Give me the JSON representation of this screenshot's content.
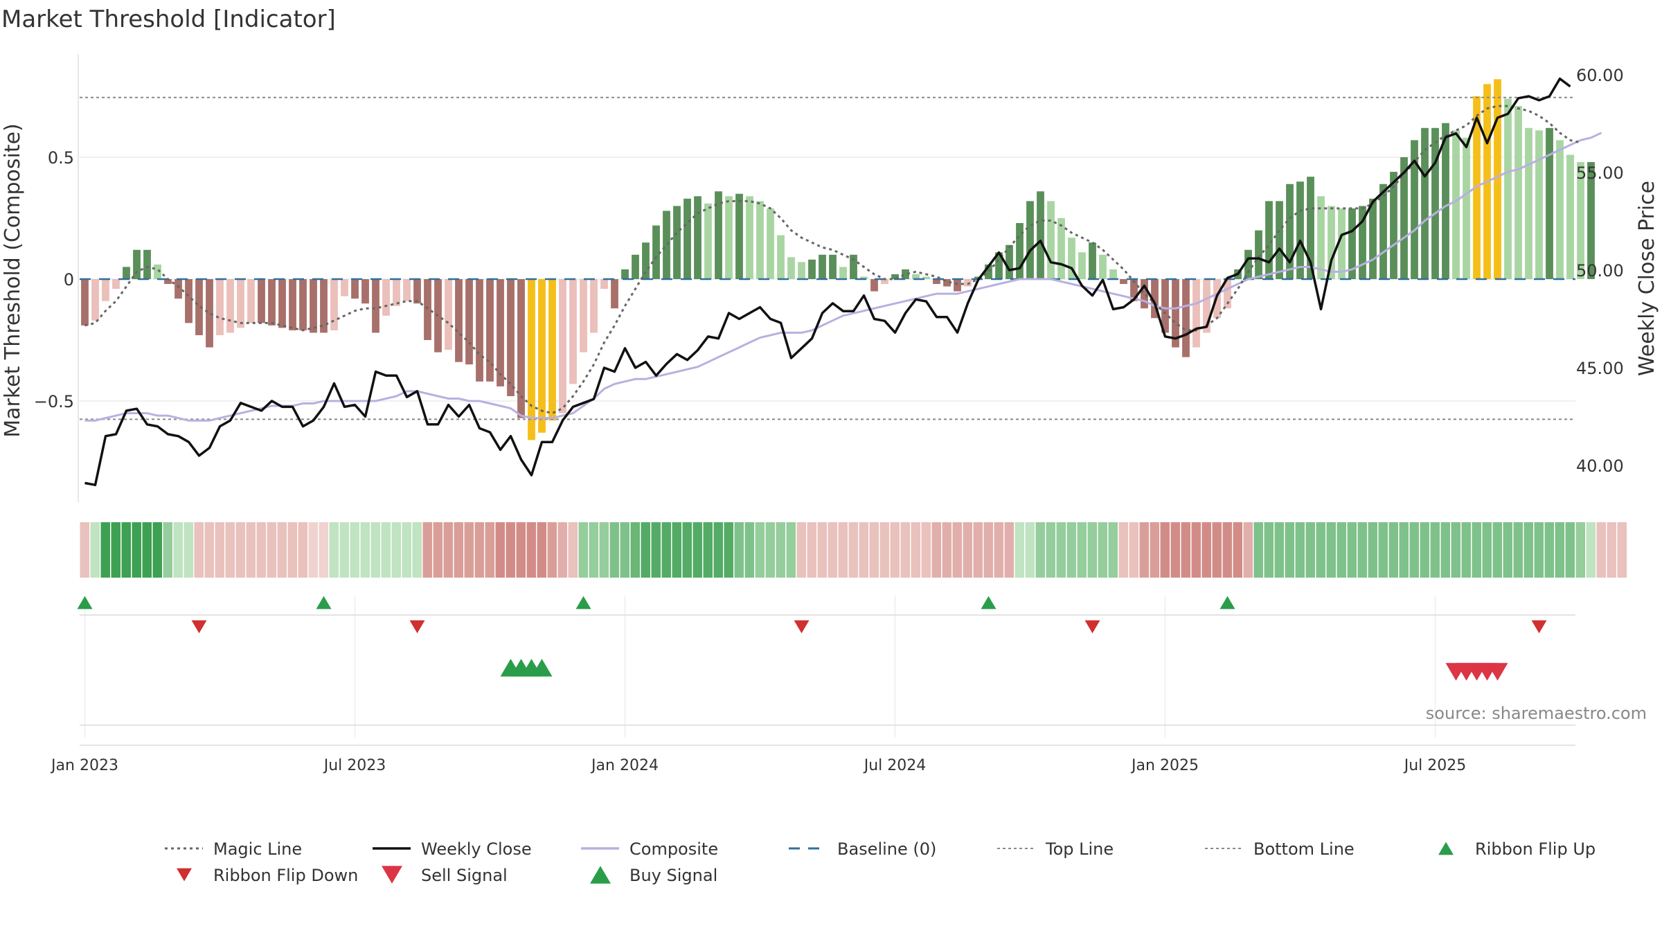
{
  "chart_data": {
    "type": "bar",
    "title": "Market Threshold [Indicator]",
    "y_left_label": "Market Threshold (Composite)",
    "y_right_label": "Weekly Close Price",
    "y_left_ticks": [
      0.5,
      0,
      -0.5
    ],
    "y_left_tick_labels": [
      "0.5",
      "0",
      "−0.5"
    ],
    "y_left_range": [
      -0.92,
      0.92
    ],
    "y_right_ticks": [
      60,
      55,
      50,
      45,
      40
    ],
    "y_right_tick_labels": [
      "60.00",
      "55.00",
      "50.00",
      "45.00",
      "40.00"
    ],
    "y_right_range": [
      37.5,
      61.5
    ],
    "x_tick_labels": [
      "Jan 2023",
      "Jul 2023",
      "Jan 2024",
      "Jul 2024",
      "Jan 2025",
      "Jul 2025"
    ],
    "x_tick_weeks": [
      0,
      26,
      52,
      78,
      104,
      130
    ],
    "week_start": "2023-01-02",
    "num_weeks": 144,
    "top_line": 0.745,
    "bottom_line": -0.575,
    "composite_bars": [
      -0.19,
      -0.17,
      -0.09,
      -0.04,
      0.05,
      0.12,
      0.12,
      0.06,
      -0.02,
      -0.08,
      -0.18,
      -0.23,
      -0.28,
      -0.23,
      -0.22,
      -0.2,
      -0.18,
      -0.18,
      -0.19,
      -0.2,
      -0.21,
      -0.21,
      -0.22,
      -0.22,
      -0.21,
      -0.07,
      -0.08,
      -0.1,
      -0.22,
      -0.15,
      -0.11,
      -0.09,
      -0.1,
      -0.25,
      -0.3,
      -0.29,
      -0.34,
      -0.35,
      -0.42,
      -0.42,
      -0.44,
      -0.48,
      -0.57,
      -0.66,
      -0.63,
      -0.58,
      -0.55,
      -0.43,
      -0.3,
      -0.22,
      -0.04,
      -0.12,
      0.04,
      0.1,
      0.15,
      0.22,
      0.28,
      0.3,
      0.33,
      0.34,
      0.31,
      0.36,
      0.34,
      0.35,
      0.34,
      0.32,
      0.29,
      0.18,
      0.09,
      0.07,
      0.08,
      0.1,
      0.1,
      0.05,
      0.1,
      0.01,
      -0.05,
      -0.02,
      0.02,
      0.04,
      0.02,
      0.01,
      -0.02,
      -0.03,
      -0.05,
      -0.03,
      0.01,
      0.06,
      0.11,
      0.14,
      0.23,
      0.32,
      0.36,
      0.32,
      0.25,
      0.17,
      0.11,
      0.15,
      0.1,
      0.04,
      -0.02,
      -0.09,
      -0.12,
      -0.16,
      -0.22,
      -0.28,
      -0.32,
      -0.28,
      -0.22,
      -0.16,
      -0.12,
      0.04,
      0.12,
      0.2,
      0.32,
      0.32,
      0.39,
      0.4,
      0.42,
      0.34,
      0.3,
      0.29,
      0.29,
      0.3,
      0.33,
      0.39,
      0.44,
      0.5,
      0.57,
      0.62,
      0.62,
      0.64,
      0.61,
      0.58,
      0.75,
      0.8,
      0.82,
      0.74,
      0.71,
      0.62,
      0.61,
      0.62,
      0.57,
      0.51,
      0.48,
      0.48
    ],
    "magic_line": [
      -0.19,
      -0.18,
      -0.13,
      -0.09,
      -0.03,
      0.03,
      0.05,
      0.04,
      0.0,
      -0.03,
      -0.07,
      -0.11,
      -0.14,
      -0.16,
      -0.17,
      -0.18,
      -0.18,
      -0.18,
      -0.18,
      -0.19,
      -0.2,
      -0.21,
      -0.2,
      -0.19,
      -0.17,
      -0.15,
      -0.13,
      -0.12,
      -0.12,
      -0.11,
      -0.1,
      -0.09,
      -0.09,
      -0.12,
      -0.15,
      -0.18,
      -0.22,
      -0.26,
      -0.31,
      -0.34,
      -0.39,
      -0.43,
      -0.48,
      -0.52,
      -0.54,
      -0.55,
      -0.53,
      -0.48,
      -0.42,
      -0.35,
      -0.26,
      -0.19,
      -0.11,
      -0.04,
      0.03,
      0.09,
      0.14,
      0.19,
      0.23,
      0.27,
      0.29,
      0.31,
      0.32,
      0.32,
      0.32,
      0.31,
      0.29,
      0.25,
      0.2,
      0.17,
      0.15,
      0.13,
      0.12,
      0.1,
      0.08,
      0.05,
      0.02,
      0.0,
      0.0,
      0.02,
      0.03,
      0.02,
      0.01,
      -0.01,
      -0.02,
      -0.02,
      0.0,
      0.03,
      0.08,
      0.13,
      0.18,
      0.22,
      0.24,
      0.24,
      0.22,
      0.19,
      0.17,
      0.15,
      0.12,
      0.08,
      0.04,
      -0.01,
      -0.06,
      -0.1,
      -0.14,
      -0.18,
      -0.21,
      -0.21,
      -0.19,
      -0.16,
      -0.1,
      -0.04,
      0.03,
      0.09,
      0.14,
      0.2,
      0.25,
      0.28,
      0.29,
      0.29,
      0.29,
      0.29,
      0.29,
      0.29,
      0.31,
      0.34,
      0.38,
      0.43,
      0.48,
      0.53,
      0.56,
      0.59,
      0.61,
      0.63,
      0.67,
      0.7,
      0.71,
      0.71,
      0.7,
      0.69,
      0.67,
      0.64,
      0.6,
      0.57,
      0.56
    ],
    "composite_line": [
      -0.58,
      -0.58,
      -0.57,
      -0.56,
      -0.55,
      -0.55,
      -0.55,
      -0.56,
      -0.56,
      -0.57,
      -0.58,
      -0.58,
      -0.58,
      -0.57,
      -0.56,
      -0.55,
      -0.54,
      -0.53,
      -0.52,
      -0.52,
      -0.52,
      -0.51,
      -0.51,
      -0.5,
      -0.5,
      -0.5,
      -0.5,
      -0.5,
      -0.5,
      -0.49,
      -0.48,
      -0.46,
      -0.46,
      -0.47,
      -0.48,
      -0.49,
      -0.49,
      -0.5,
      -0.5,
      -0.51,
      -0.52,
      -0.53,
      -0.56,
      -0.57,
      -0.57,
      -0.57,
      -0.56,
      -0.55,
      -0.52,
      -0.49,
      -0.45,
      -0.43,
      -0.42,
      -0.41,
      -0.41,
      -0.4,
      -0.39,
      -0.38,
      -0.37,
      -0.36,
      -0.34,
      -0.32,
      -0.3,
      -0.28,
      -0.26,
      -0.24,
      -0.23,
      -0.22,
      -0.22,
      -0.22,
      -0.21,
      -0.19,
      -0.17,
      -0.15,
      -0.14,
      -0.13,
      -0.12,
      -0.11,
      -0.1,
      -0.09,
      -0.08,
      -0.07,
      -0.06,
      -0.06,
      -0.06,
      -0.05,
      -0.04,
      -0.03,
      -0.02,
      -0.01,
      0.0,
      0.0,
      0.0,
      0.0,
      -0.01,
      -0.02,
      -0.03,
      -0.04,
      -0.05,
      -0.06,
      -0.07,
      -0.08,
      -0.09,
      -0.11,
      -0.12,
      -0.12,
      -0.11,
      -0.1,
      -0.08,
      -0.06,
      -0.04,
      -0.02,
      0.0,
      0.01,
      0.02,
      0.03,
      0.04,
      0.05,
      0.05,
      0.04,
      0.03,
      0.03,
      0.04,
      0.06,
      0.08,
      0.11,
      0.14,
      0.17,
      0.2,
      0.24,
      0.27,
      0.3,
      0.32,
      0.35,
      0.38,
      0.4,
      0.42,
      0.44,
      0.45,
      0.47,
      0.49,
      0.51,
      0.53,
      0.55,
      0.57,
      0.58,
      0.6
    ],
    "weekly_close": [
      39.1,
      39.0,
      41.5,
      41.6,
      42.8,
      42.9,
      42.1,
      42.0,
      41.6,
      41.5,
      41.2,
      40.5,
      40.9,
      42.0,
      42.3,
      43.2,
      43.0,
      42.8,
      43.3,
      43.0,
      43.0,
      42.0,
      42.3,
      43.0,
      44.2,
      43.0,
      43.1,
      42.5,
      44.8,
      44.6,
      44.6,
      43.5,
      43.8,
      42.1,
      42.1,
      43.1,
      42.5,
      43.1,
      41.9,
      41.7,
      40.8,
      41.5,
      40.3,
      39.5,
      41.2,
      41.2,
      42.3,
      43.0,
      43.2,
      43.4,
      45.0,
      44.8,
      46.0,
      45.0,
      45.3,
      44.6,
      45.2,
      45.7,
      45.4,
      45.9,
      46.6,
      46.5,
      47.8,
      47.5,
      47.8,
      48.1,
      47.5,
      47.3,
      45.5,
      46.0,
      46.5,
      47.8,
      48.3,
      47.9,
      47.9,
      48.7,
      47.5,
      47.4,
      46.8,
      47.8,
      48.5,
      48.4,
      47.6,
      47.6,
      46.8,
      48.3,
      49.5,
      50.2,
      50.9,
      50.0,
      50.1,
      51.0,
      51.5,
      50.4,
      50.3,
      50.1,
      49.2,
      48.7,
      49.5,
      48.0,
      48.1,
      48.5,
      49.2,
      48.3,
      46.6,
      46.5,
      46.7,
      47.0,
      47.1,
      48.7,
      49.6,
      49.8,
      50.6,
      50.6,
      50.4,
      51.1,
      50.4,
      51.5,
      50.4,
      48.0,
      50.5,
      51.8,
      52.0,
      52.5,
      53.5,
      54.0,
      54.5,
      55.0,
      55.6,
      54.8,
      55.5,
      56.8,
      57.0,
      56.3,
      57.8,
      56.5,
      57.8,
      58.0,
      58.8,
      58.9,
      58.7,
      58.9,
      59.8,
      59.4
    ],
    "ribbon_values": [
      -0.3,
      0.3,
      0.9,
      0.9,
      0.9,
      0.9,
      0.9,
      0.9,
      0.5,
      0.3,
      0.3,
      -0.3,
      -0.3,
      -0.3,
      -0.3,
      -0.3,
      -0.3,
      -0.3,
      -0.3,
      -0.3,
      -0.3,
      -0.3,
      -0.2,
      -0.2,
      0.3,
      0.3,
      0.3,
      0.3,
      0.3,
      0.3,
      0.3,
      0.3,
      0.3,
      -0.5,
      -0.5,
      -0.5,
      -0.5,
      -0.5,
      -0.5,
      -0.5,
      -0.6,
      -0.6,
      -0.6,
      -0.6,
      -0.6,
      -0.5,
      -0.4,
      -0.3,
      0.5,
      0.5,
      0.5,
      0.6,
      0.6,
      0.7,
      0.8,
      0.8,
      0.8,
      0.8,
      0.8,
      0.8,
      0.8,
      0.8,
      0.8,
      0.6,
      0.6,
      0.5,
      0.5,
      0.5,
      0.5,
      -0.3,
      -0.3,
      -0.3,
      -0.3,
      -0.3,
      -0.3,
      -0.3,
      -0.3,
      -0.3,
      -0.3,
      -0.3,
      -0.3,
      -0.3,
      -0.4,
      -0.4,
      -0.4,
      -0.4,
      -0.4,
      -0.4,
      -0.4,
      -0.4,
      0.3,
      0.3,
      0.5,
      0.5,
      0.5,
      0.5,
      0.5,
      0.5,
      0.5,
      0.5,
      -0.3,
      -0.3,
      -0.5,
      -0.5,
      -0.6,
      -0.6,
      -0.6,
      -0.6,
      -0.6,
      -0.6,
      -0.6,
      -0.6,
      -0.4,
      0.6,
      0.6,
      0.6,
      0.6,
      0.6,
      0.6,
      0.6,
      0.6,
      0.6,
      0.6,
      0.6,
      0.6,
      0.6,
      0.6,
      0.6,
      0.6,
      0.6,
      0.6,
      0.6,
      0.6,
      0.6,
      0.6,
      0.6,
      0.6,
      0.6,
      0.6,
      0.6,
      0.6,
      0.6,
      0.6,
      0.6,
      0.5,
      0.3,
      -0.3,
      -0.3,
      -0.3
    ],
    "ribbon_flip_up": [
      0,
      23,
      48,
      87,
      110
    ],
    "ribbon_flip_down": [
      11,
      32,
      69,
      97,
      140
    ],
    "buy_signal": [
      41,
      42,
      43,
      44
    ],
    "sell_signal": [
      132,
      133,
      134,
      135,
      136
    ],
    "source_label": "source: sharemaestro.com",
    "legend": [
      {
        "label": "Magic Line",
        "type": "dotted",
        "color": "#666666"
      },
      {
        "label": "Weekly Close",
        "type": "line",
        "color": "#111111"
      },
      {
        "label": "Composite",
        "type": "line",
        "color": "#b8b0e0"
      },
      {
        "label": "Baseline (0)",
        "type": "dashed",
        "color": "#2f6f9f"
      },
      {
        "label": "Top Line",
        "type": "dotted-thin",
        "color": "#888888"
      },
      {
        "label": "Bottom Line",
        "type": "dotted-thin",
        "color": "#888888"
      },
      {
        "label": "Ribbon Flip Up",
        "type": "tri-up",
        "color": "#2a9d4a"
      },
      {
        "label": "Ribbon Flip Down",
        "type": "tri-down",
        "color": "#d03030"
      },
      {
        "label": "Sell Signal",
        "type": "tri-down-big",
        "color": "#dc3545"
      },
      {
        "label": "Buy Signal",
        "type": "tri-up-big",
        "color": "#2a9d4a"
      }
    ],
    "colors": {
      "bar_pos_strong": "#5a8f5a",
      "bar_pos_light": "#a9d5a3",
      "bar_neg_strong": "#a8706a",
      "bar_neg_light": "#ebbfba",
      "bar_extreme": "#f5bf1a",
      "weekly_close": "#111111",
      "composite": "#b8b0e0",
      "magic_line": "#666666",
      "baseline": "#2f6f9f",
      "threshold": "#888888"
    }
  }
}
